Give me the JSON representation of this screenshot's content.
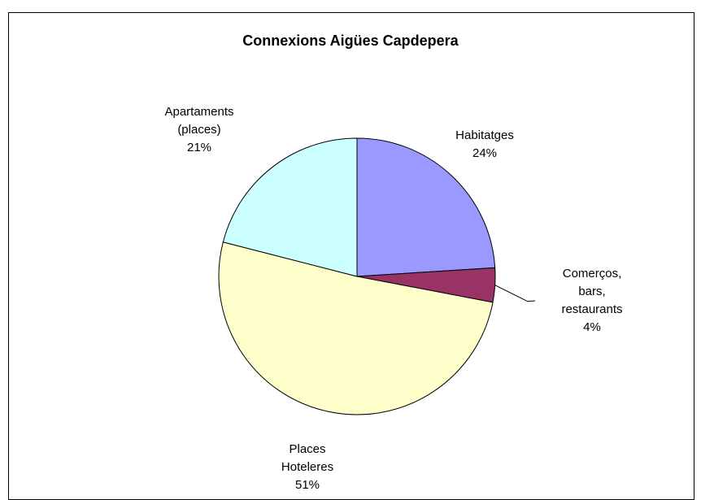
{
  "chart_data": {
    "type": "pie",
    "title": "Connexions Aigües Capdepera",
    "categories": [
      "Habitatges",
      "Comerços, bars, restaurants",
      "Places Hoteleres",
      "Apartaments (places)"
    ],
    "values": [
      24,
      4,
      51,
      21
    ],
    "value_labels": [
      "24%",
      "4%",
      "51%",
      "21%"
    ],
    "colors": [
      "#9999ff",
      "#993366",
      "#ffffcc",
      "#ccffff"
    ]
  }
}
